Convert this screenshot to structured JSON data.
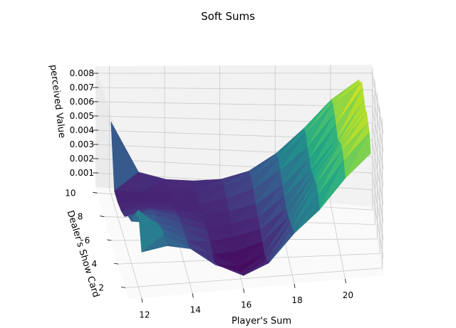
{
  "chart_data": {
    "type": "surface3d",
    "title": "Soft Sums",
    "xlabel": "Player's Sum",
    "ylabel": "Dealer's Show Card",
    "zlabel": "perceived Value",
    "x_ticks": [
      "12",
      "14",
      "16",
      "18",
      "20"
    ],
    "y_ticks": [
      "2",
      "4",
      "6",
      "8",
      "10"
    ],
    "z_ticks": [
      "0.001",
      "0.002",
      "0.003",
      "0.004",
      "0.005",
      "0.006",
      "0.007",
      "0.008"
    ],
    "colormap": "viridis",
    "grid": true,
    "x": [
      12,
      13,
      14,
      15,
      16,
      17,
      18,
      19,
      20,
      21
    ],
    "y": [
      1,
      2,
      3,
      4,
      5,
      6,
      7,
      8,
      9,
      10
    ],
    "z": [
      [
        0.003,
        0.0032,
        0.0028,
        0.0016,
        0.0008,
        0.0014,
        0.003,
        0.0042,
        0.0058,
        0.007
      ],
      [
        0.005,
        0.0032,
        0.0022,
        0.001,
        0.0004,
        0.001,
        0.0028,
        0.0046,
        0.0064,
        0.0078
      ],
      [
        0.004,
        0.003,
        0.002,
        0.001,
        0.0002,
        0.0008,
        0.0026,
        0.0048,
        0.0066,
        0.008
      ],
      [
        0.0028,
        0.0026,
        0.002,
        0.0012,
        0.0005,
        0.001,
        0.0024,
        0.0046,
        0.0066,
        0.0082
      ],
      [
        0.0024,
        0.0024,
        0.0018,
        0.0012,
        0.0008,
        0.0012,
        0.0024,
        0.0044,
        0.0062,
        0.008
      ],
      [
        0.0016,
        0.002,
        0.0016,
        0.001,
        0.001,
        0.0014,
        0.0026,
        0.0042,
        0.006,
        0.0082
      ],
      [
        0.0012,
        0.0014,
        0.0012,
        0.001,
        0.0012,
        0.0016,
        0.0028,
        0.0044,
        0.0064,
        0.0085
      ],
      [
        0.001,
        0.001,
        0.001,
        0.001,
        0.0014,
        0.002,
        0.0032,
        0.0046,
        0.0066,
        0.0085
      ],
      [
        0.001,
        0.001,
        0.0011,
        0.0012,
        0.0016,
        0.0022,
        0.0034,
        0.005,
        0.0068,
        0.008
      ],
      [
        0.005,
        0.0016,
        0.0012,
        0.0012,
        0.0014,
        0.002,
        0.0032,
        0.0048,
        0.0066,
        0.0078
      ]
    ]
  }
}
